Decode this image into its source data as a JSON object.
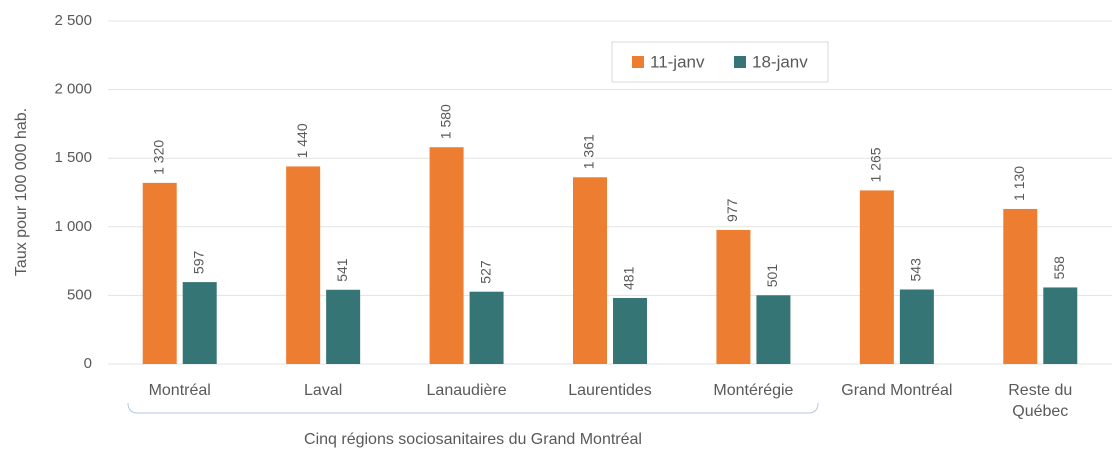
{
  "chart_data": {
    "type": "bar",
    "y_label": "Taux pour 100 000 hab.",
    "annotation": "Cinq régions sociosanitaires du Grand Montréal",
    "categories": [
      "Montréal",
      "Laval",
      "Lanaudière",
      "Laurentides",
      "Montérégie",
      "Grand Montréal",
      "Reste du\nQuébec"
    ],
    "series": [
      {
        "name": "11-janv",
        "color": "#ed7d31",
        "values": [
          1320,
          1440,
          1580,
          1361,
          977,
          1265,
          1130
        ],
        "value_labels": [
          "1 320",
          "1 440",
          "1 580",
          "1 361",
          "977",
          "1 265",
          "1 130"
        ]
      },
      {
        "name": "18-janv",
        "color": "#367575",
        "values": [
          597,
          541,
          527,
          481,
          501,
          543,
          558
        ]
      }
    ],
    "ylim": [
      0,
      2500
    ],
    "yticks": [
      0,
      500,
      {
        "value": 1000,
        "label": "1 000"
      },
      {
        "value": 1500,
        "label": "1 500"
      },
      {
        "value": 2000,
        "label": "2 000"
      },
      {
        "value": 2500,
        "label": "2 500"
      }
    ],
    "grid": true,
    "legend": "top"
  }
}
